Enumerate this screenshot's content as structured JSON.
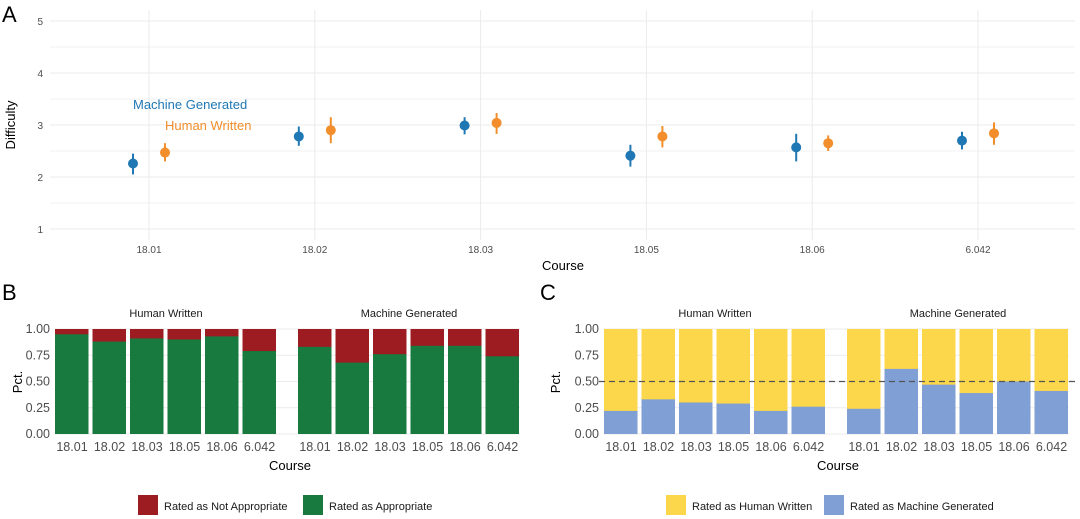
{
  "chart_data": [
    {
      "panel": "A",
      "type": "scatter",
      "xlabel": "Course",
      "ylabel": "Difficulty",
      "categories": [
        "18.01",
        "18.02",
        "18.03",
        "18.05",
        "18.06",
        "6.042"
      ],
      "yticks": [
        1,
        2,
        3,
        4,
        5
      ],
      "ylim": [
        1,
        5
      ],
      "grid": true,
      "series": [
        {
          "name": "Machine Generated",
          "color": "#1f77b4",
          "values": [
            2.26,
            2.78,
            2.99,
            2.41,
            2.57,
            2.7
          ],
          "lower": [
            2.05,
            2.6,
            2.82,
            2.2,
            2.3,
            2.53
          ],
          "upper": [
            2.45,
            2.97,
            3.15,
            2.62,
            2.83,
            2.87
          ]
        },
        {
          "name": "Human Written",
          "color": "#f28e2b",
          "values": [
            2.47,
            2.9,
            3.04,
            2.78,
            2.65,
            2.84
          ],
          "lower": [
            2.3,
            2.65,
            2.83,
            2.57,
            2.5,
            2.62
          ],
          "upper": [
            2.65,
            3.15,
            3.23,
            2.98,
            2.8,
            3.05
          ]
        }
      ]
    },
    {
      "panel": "B",
      "type": "bar",
      "stacked": true,
      "xlabel": "Course",
      "ylabel": "Pct.",
      "yticks": [
        "0.00",
        "0.25",
        "0.50",
        "0.75",
        "1.00"
      ],
      "ylim": [
        0,
        1
      ],
      "categories": [
        "18.01",
        "18.02",
        "18.03",
        "18.05",
        "18.06",
        "6.042"
      ],
      "facets": [
        {
          "name": "Human Written",
          "Rated as Appropriate": [
            0.95,
            0.88,
            0.91,
            0.9,
            0.93,
            0.79
          ]
        },
        {
          "name": "Machine Generated",
          "Rated as Appropriate": [
            0.83,
            0.68,
            0.76,
            0.84,
            0.84,
            0.74
          ]
        }
      ],
      "legend": [
        {
          "name": "Rated as Not Appropriate",
          "color": "#9c1c22"
        },
        {
          "name": "Rated as Appropriate",
          "color": "#187a3e"
        }
      ],
      "legend_position": "bottom"
    },
    {
      "panel": "C",
      "type": "bar",
      "stacked": true,
      "xlabel": "Course",
      "ylabel": "Pct.",
      "yticks": [
        "0.00",
        "0.25",
        "0.50",
        "0.75",
        "1.00"
      ],
      "ylim": [
        0,
        1
      ],
      "reference_line": 0.5,
      "categories": [
        "18.01",
        "18.02",
        "18.03",
        "18.05",
        "18.06",
        "6.042"
      ],
      "facets": [
        {
          "name": "Human Written",
          "Rated as Machine Generated": [
            0.22,
            0.33,
            0.3,
            0.29,
            0.22,
            0.26
          ]
        },
        {
          "name": "Machine Generated",
          "Rated as Machine Generated": [
            0.24,
            0.62,
            0.47,
            0.39,
            0.5,
            0.41
          ]
        }
      ],
      "legend": [
        {
          "name": "Rated as Human Written",
          "color": "#fcd64b"
        },
        {
          "name": "Rated as Machine Generated",
          "color": "#7f9fd5"
        }
      ],
      "legend_position": "bottom"
    }
  ]
}
